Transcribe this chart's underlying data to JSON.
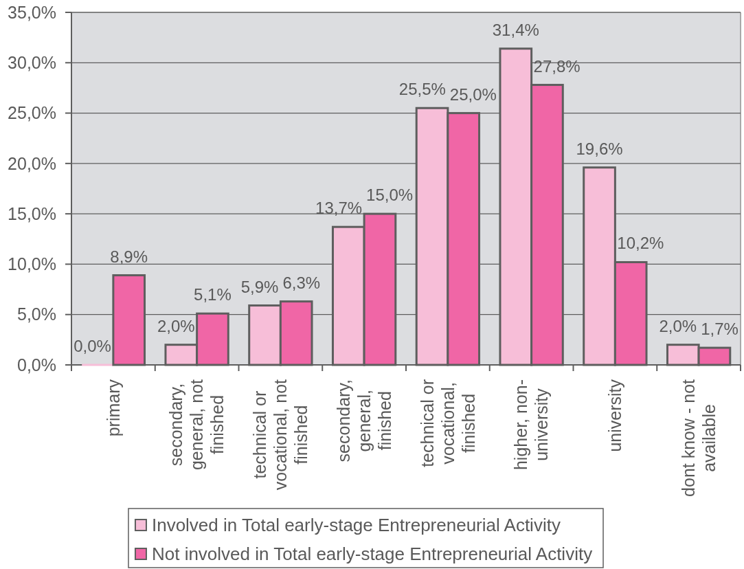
{
  "chart_data": {
    "type": "bar",
    "categories": [
      "primary",
      "secondary, general, not finished",
      "technical or vocational, not finished",
      "secondary, general, finished",
      "technical or vocational, finished",
      "higher, non-university",
      "university",
      "dont know - not available"
    ],
    "series": [
      {
        "name": "Involved in Total early-stage Entrepreneurial Activity",
        "color": "#f7bed8",
        "values": [
          0.0,
          2.0,
          5.9,
          13.7,
          25.5,
          31.4,
          19.6,
          2.0
        ],
        "value_labels": [
          "0,0%",
          "2,0%",
          "5,9%",
          "13,7%",
          "25,5%",
          "31,4%",
          "19,6%",
          "2,0%"
        ]
      },
      {
        "name": "Not involved in Total early-stage Entrepreneurial Activity",
        "color": "#f066a6",
        "values": [
          8.9,
          5.1,
          6.3,
          15.0,
          25.0,
          27.8,
          10.2,
          1.7
        ],
        "value_labels": [
          "8,9%",
          "5,1%",
          "6,3%",
          "15,0%",
          "25,0%",
          "27,8%",
          "10,2%",
          "1,7%"
        ]
      }
    ],
    "ylim": [
      0,
      35
    ],
    "yticks": [
      {
        "value": 0,
        "label": "0,0%"
      },
      {
        "value": 5,
        "label": "5,0%"
      },
      {
        "value": 10,
        "label": "10,0%"
      },
      {
        "value": 15,
        "label": "15,0%"
      },
      {
        "value": 20,
        "label": "20,0%"
      },
      {
        "value": 25,
        "label": "25,0%"
      },
      {
        "value": 30,
        "label": "30,0%"
      },
      {
        "value": 35,
        "label": "35,0%"
      }
    ],
    "grid": "y",
    "legend": "bottom"
  }
}
